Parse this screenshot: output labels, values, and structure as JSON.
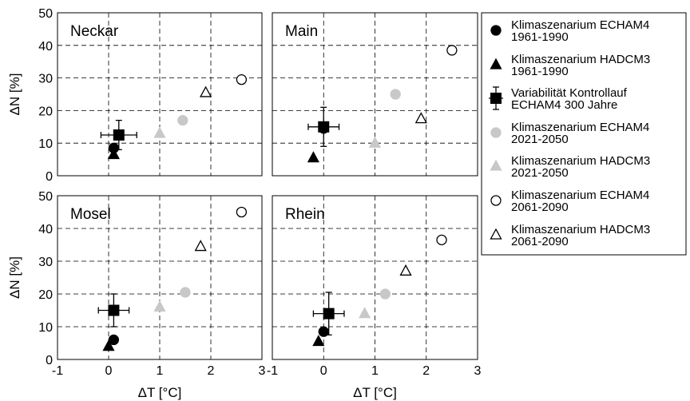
{
  "colors": {
    "black": "#000000",
    "gray": "#c8c8c8",
    "open": "#ffffff"
  },
  "axes": {
    "xlabel": "ΔT [°C]",
    "ylabel": "ΔN [%]",
    "xlim": [
      -1,
      3
    ],
    "ylim": [
      0,
      50
    ],
    "xticks": [
      "-1",
      "0",
      "1",
      "2",
      "3"
    ],
    "yticks": [
      "0",
      "10",
      "20",
      "30",
      "40",
      "50"
    ],
    "grid": "dashed"
  },
  "legend": {
    "placement": "right",
    "items": [
      {
        "marker": "circle-filled-black",
        "lines": [
          "Klimaszenarium ECHAM4",
          "1961-1990"
        ]
      },
      {
        "marker": "triangle-filled-black",
        "lines": [
          "Klimaszenarium HADCM3",
          "1961-1990"
        ]
      },
      {
        "marker": "square-errorbar-black",
        "lines": [
          "Variabilität Kontrollauf",
          "ECHAM4  300 Jahre"
        ]
      },
      {
        "marker": "circle-filled-gray",
        "lines": [
          "Klimaszenarium ECHAM4",
          "2021-2050"
        ]
      },
      {
        "marker": "triangle-filled-gray",
        "lines": [
          "Klimaszenarium HADCM3",
          "2021-2050"
        ]
      },
      {
        "marker": "circle-open",
        "lines": [
          "Klimaszenarium ECHAM4",
          "2061-2090"
        ]
      },
      {
        "marker": "triangle-open",
        "lines": [
          "Klimaszenarium HADCM3",
          "2061-2090"
        ]
      }
    ]
  },
  "chart_data": [
    {
      "type": "scatter",
      "title": "Neckar",
      "xlim": [
        -1,
        3
      ],
      "ylim": [
        0,
        50
      ],
      "points": [
        {
          "series": 0,
          "x": 0.1,
          "y": 8.5
        },
        {
          "series": 1,
          "x": 0.1,
          "y": 6.5
        },
        {
          "series": 2,
          "x": 0.2,
          "y": 12.5,
          "xerr": 0.35,
          "yerr": 4.5
        },
        {
          "series": 3,
          "x": 1.45,
          "y": 17.0
        },
        {
          "series": 4,
          "x": 1.0,
          "y": 13.0
        },
        {
          "series": 5,
          "x": 2.6,
          "y": 29.5
        },
        {
          "series": 6,
          "x": 1.9,
          "y": 25.5
        }
      ]
    },
    {
      "type": "scatter",
      "title": "Main",
      "xlim": [
        -1,
        3
      ],
      "ylim": [
        0,
        50
      ],
      "points": [
        {
          "series": 0,
          "x": 0.0,
          "y": 14.5
        },
        {
          "series": 1,
          "x": -0.2,
          "y": 5.5
        },
        {
          "series": 2,
          "x": 0.0,
          "y": 15.0,
          "xerr": 0.3,
          "yerr": 6.0
        },
        {
          "series": 3,
          "x": 1.4,
          "y": 25.0
        },
        {
          "series": 4,
          "x": 1.0,
          "y": 10.0
        },
        {
          "series": 5,
          "x": 2.5,
          "y": 38.5
        },
        {
          "series": 6,
          "x": 1.9,
          "y": 17.5
        }
      ]
    },
    {
      "type": "scatter",
      "title": "Mosel",
      "xlim": [
        -1,
        3
      ],
      "ylim": [
        0,
        50
      ],
      "points": [
        {
          "series": 0,
          "x": 0.1,
          "y": 6.0
        },
        {
          "series": 1,
          "x": 0.0,
          "y": 4.0
        },
        {
          "series": 2,
          "x": 0.1,
          "y": 15.0,
          "xerr": 0.3,
          "yerr": 5.0
        },
        {
          "series": 3,
          "x": 1.5,
          "y": 20.5
        },
        {
          "series": 4,
          "x": 1.0,
          "y": 16.0
        },
        {
          "series": 5,
          "x": 2.6,
          "y": 45.0
        },
        {
          "series": 6,
          "x": 1.8,
          "y": 34.5
        }
      ]
    },
    {
      "type": "scatter",
      "title": "Rhein",
      "xlim": [
        -1,
        3
      ],
      "ylim": [
        0,
        50
      ],
      "points": [
        {
          "series": 0,
          "x": 0.0,
          "y": 8.5
        },
        {
          "series": 1,
          "x": -0.1,
          "y": 5.5
        },
        {
          "series": 2,
          "x": 0.1,
          "y": 14.0,
          "xerr": 0.3,
          "yerr": 6.5
        },
        {
          "series": 3,
          "x": 1.2,
          "y": 20.0
        },
        {
          "series": 4,
          "x": 0.8,
          "y": 14.0
        },
        {
          "series": 5,
          "x": 2.3,
          "y": 36.5
        },
        {
          "series": 6,
          "x": 1.6,
          "y": 27.0
        }
      ]
    }
  ]
}
